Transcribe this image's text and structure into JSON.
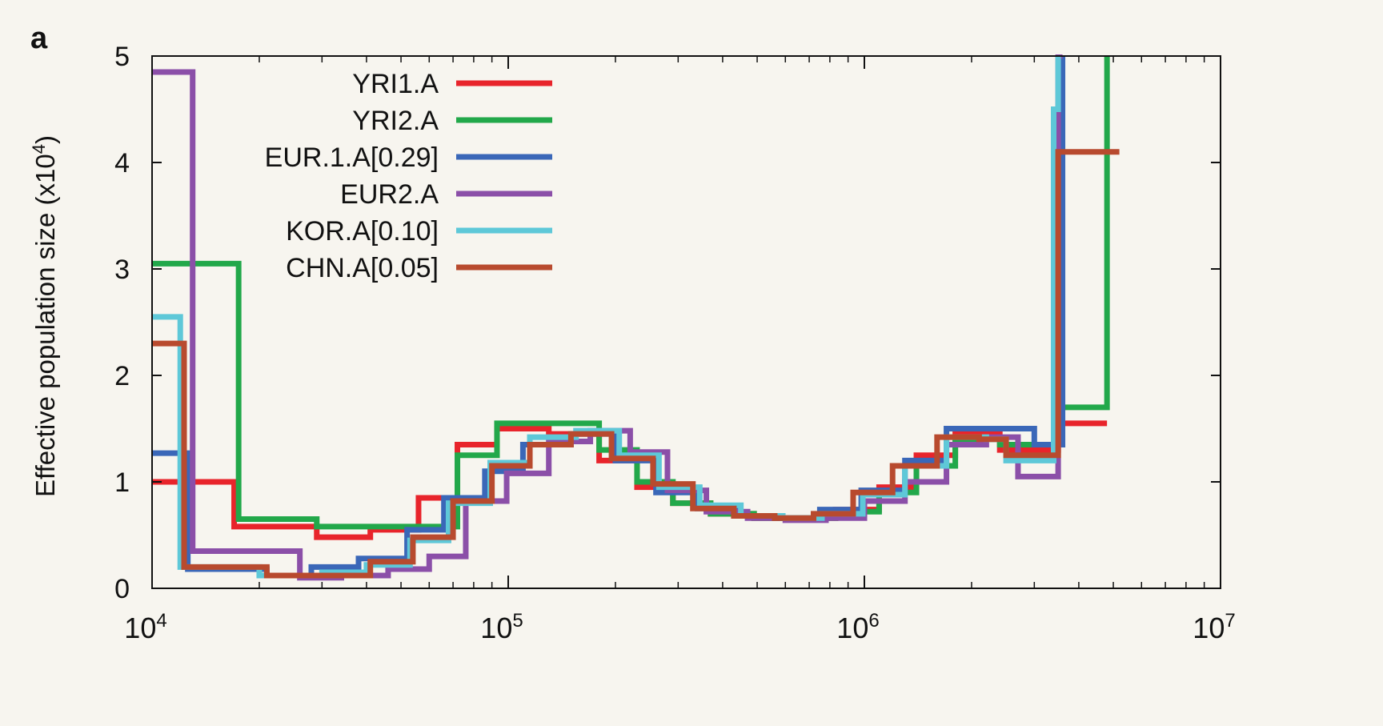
{
  "panel_label": "a",
  "chart_data": {
    "type": "line",
    "step": true,
    "xscale": "log",
    "xlim": [
      10000,
      10000000
    ],
    "ylim": [
      0,
      5
    ],
    "ylabel_main": "Effective population size (x10",
    "ylabel_exp": "4",
    "ylabel_close": ")",
    "xticks": [
      {
        "value": 10000,
        "base": "10",
        "exp": "4"
      },
      {
        "value": 100000,
        "base": "10",
        "exp": "5"
      },
      {
        "value": 1000000,
        "base": "10",
        "exp": "6"
      },
      {
        "value": 10000000,
        "base": "10",
        "exp": "7"
      }
    ],
    "yticks": [
      0,
      1,
      2,
      3,
      4,
      5
    ],
    "grid": false,
    "legend_position": "top-left",
    "series": [
      {
        "name": "YRI1.A",
        "color": "#e8242b",
        "x": [
          10000,
          12400,
          17000,
          21000,
          29000,
          41000,
          56000,
          72000,
          93000,
          130000,
          180000,
          230000,
          290000,
          370000,
          490000,
          640000,
          830000,
          1100000,
          1400000,
          1800000,
          2400000,
          3500000,
          4800000
        ],
        "y": [
          1.0,
          1.0,
          0.58,
          0.58,
          0.48,
          0.55,
          0.85,
          1.35,
          1.5,
          1.45,
          1.2,
          0.95,
          0.8,
          0.7,
          0.66,
          0.66,
          0.74,
          0.95,
          1.25,
          1.45,
          1.3,
          1.55,
          1.55
        ]
      },
      {
        "name": "YRI2.A",
        "color": "#22a84a",
        "x": [
          10000,
          17500,
          21000,
          29000,
          41000,
          56000,
          72000,
          93000,
          130000,
          180000,
          230000,
          290000,
          370000,
          490000,
          640000,
          830000,
          1100000,
          1400000,
          1800000,
          2400000,
          3500000,
          4800000,
          4800000
        ],
        "y": [
          3.05,
          0.65,
          0.65,
          0.58,
          0.58,
          0.58,
          1.25,
          1.55,
          1.55,
          1.3,
          1.0,
          0.8,
          0.7,
          0.66,
          0.66,
          0.72,
          0.9,
          1.15,
          1.4,
          1.35,
          1.7,
          5.0,
          5.0
        ]
      },
      {
        "name": "EUR.1.A[0.29]",
        "color": "#3a67b8",
        "x": [
          10000,
          12600,
          21000,
          28000,
          38000,
          52000,
          66000,
          86000,
          110000,
          150000,
          200000,
          260000,
          340000,
          440000,
          580000,
          750000,
          980000,
          1300000,
          1700000,
          2200000,
          3000000,
          3600000
        ],
        "y": [
          1.27,
          0.18,
          0.12,
          0.2,
          0.28,
          0.55,
          0.85,
          1.1,
          1.35,
          1.45,
          1.2,
          0.9,
          0.75,
          0.68,
          0.66,
          0.74,
          0.92,
          1.2,
          1.5,
          1.5,
          1.35,
          5.0
        ]
      },
      {
        "name": "EUR2.A",
        "color": "#8b4fa8",
        "x": [
          10000,
          13000,
          26000,
          34000,
          46000,
          60000,
          76000,
          99000,
          130000,
          170000,
          220000,
          280000,
          360000,
          470000,
          600000,
          780000,
          1000000,
          1300000,
          1700000,
          2200000,
          2700000,
          3500000,
          3600000
        ],
        "y": [
          4.85,
          0.35,
          0.1,
          0.12,
          0.18,
          0.3,
          0.82,
          1.08,
          1.38,
          1.48,
          1.28,
          0.92,
          0.72,
          0.66,
          0.64,
          0.66,
          0.82,
          1.0,
          1.35,
          1.42,
          1.05,
          5.0,
          5.0
        ]
      },
      {
        "name": "KOR.A[0.10]",
        "color": "#5ec8d8",
        "x": [
          10000,
          12000,
          20000,
          30000,
          40000,
          53000,
          68000,
          89000,
          115000,
          155000,
          205000,
          265000,
          345000,
          450000,
          590000,
          760000,
          990000,
          1300000,
          1700000,
          2200000,
          2500000,
          3400000,
          3500000
        ],
        "y": [
          2.55,
          0.2,
          0.12,
          0.15,
          0.22,
          0.45,
          0.8,
          1.18,
          1.42,
          1.48,
          1.25,
          0.95,
          0.78,
          0.68,
          0.66,
          0.7,
          0.88,
          1.15,
          1.42,
          1.4,
          1.2,
          4.5,
          5.0
        ]
      },
      {
        "name": "CHN.A[0.05]",
        "color": "#b84a2e",
        "x": [
          10000,
          12300,
          21000,
          29000,
          41000,
          54000,
          70000,
          90000,
          115000,
          150000,
          195000,
          255000,
          330000,
          430000,
          560000,
          720000,
          930000,
          1200000,
          1600000,
          2100000,
          2500000,
          3500000,
          5200000
        ],
        "y": [
          2.3,
          0.2,
          0.12,
          0.12,
          0.25,
          0.48,
          0.82,
          1.15,
          1.35,
          1.45,
          1.22,
          0.98,
          0.75,
          0.68,
          0.66,
          0.7,
          0.9,
          1.15,
          1.42,
          1.4,
          1.25,
          4.1,
          4.1
        ]
      }
    ]
  }
}
